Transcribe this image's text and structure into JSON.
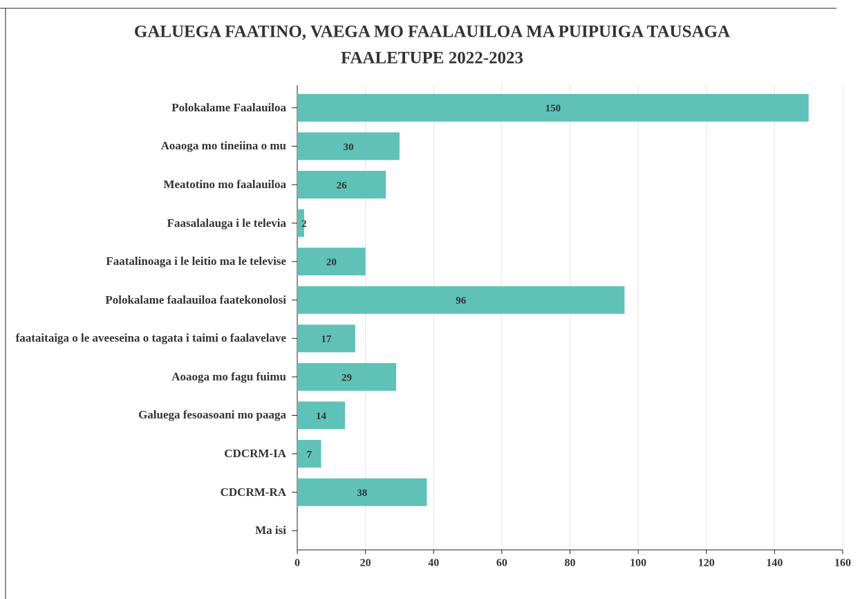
{
  "chart_data": {
    "type": "bar",
    "orientation": "horizontal",
    "title": [
      "GALUEGA FAATINO, VAEGA MO FAALAUILOA MA PUIPUIGA TAUSAGA",
      "FAALETUPE 2022-2023"
    ],
    "categories": [
      "Polokalame Faalauiloa",
      "Aoaoga mo tineiina o mu",
      "Meatotino mo faalauiloa",
      "Faasalalauga i le televia",
      "Faatalinoaga i le leitio ma le televise",
      "Polokalame faalauiloa faatekonolosi",
      "faataitaiga o le aveeseina o tagata i taimi o faalavelave",
      "Aoaoga mo fagu fuimu",
      "Galuega fesoasoani mo paaga",
      "CDCRM-IA",
      "CDCRM-RA",
      "Ma isi"
    ],
    "values": [
      150,
      30,
      26,
      2,
      20,
      96,
      17,
      29,
      14,
      7,
      38,
      null
    ],
    "color": "#5fc1b8",
    "xlim": [
      0,
      160
    ],
    "xticks": [
      0,
      20,
      40,
      60,
      80,
      100,
      120,
      140,
      160
    ],
    "grid": true
  }
}
